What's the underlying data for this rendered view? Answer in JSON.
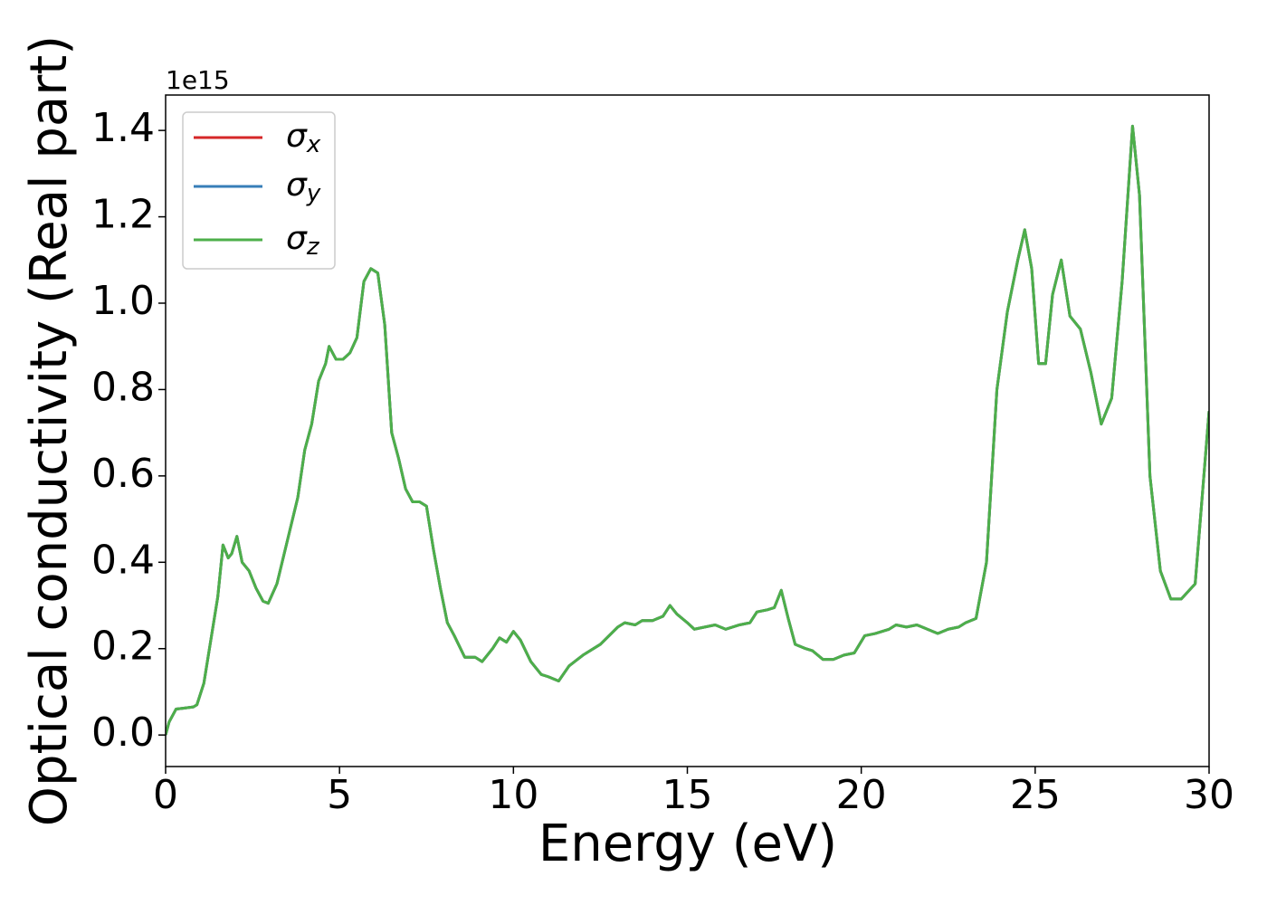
{
  "chart_data": {
    "type": "line",
    "xlabel": "Energy (eV)",
    "ylabel": "Optical conductivity (Real part)",
    "y_offset_label": "1e15",
    "xlim": [
      0,
      30
    ],
    "ylim": [
      -0.073,
      1.482
    ],
    "xticks": [
      0,
      5,
      10,
      15,
      20,
      25,
      30
    ],
    "yticks": [
      {
        "value": 0,
        "label": "0.0"
      },
      0.2,
      0.4,
      0.6,
      0.8,
      {
        "value": 1,
        "label": "1.0"
      },
      1.2,
      1.4
    ],
    "legend": "upper left",
    "x": [
      0,
      0.1,
      0.3,
      0.5,
      0.8,
      0.9,
      1.1,
      1.3,
      1.5,
      1.65,
      1.8,
      1.9,
      2.05,
      2.2,
      2.4,
      2.6,
      2.8,
      2.95,
      3.2,
      3.5,
      3.8,
      4.0,
      4.2,
      4.4,
      4.6,
      4.7,
      4.9,
      5.1,
      5.3,
      5.5,
      5.7,
      5.9,
      6.1,
      6.3,
      6.5,
      6.7,
      6.9,
      7.1,
      7.3,
      7.5,
      7.7,
      7.9,
      8.1,
      8.3,
      8.6,
      8.9,
      9.1,
      9.4,
      9.6,
      9.8,
      10.0,
      10.2,
      10.5,
      10.8,
      11.0,
      11.3,
      11.6,
      12.0,
      12.5,
      13.0,
      13.2,
      13.5,
      13.7,
      14.0,
      14.3,
      14.5,
      14.7,
      15.0,
      15.2,
      15.5,
      15.8,
      16.1,
      16.5,
      16.8,
      17.0,
      17.3,
      17.5,
      17.7,
      17.9,
      18.1,
      18.4,
      18.6,
      18.9,
      19.2,
      19.5,
      19.8,
      20.1,
      20.4,
      20.8,
      21.0,
      21.3,
      21.6,
      21.9,
      22.2,
      22.5,
      22.8,
      23.0,
      23.3,
      23.6,
      23.9,
      24.2,
      24.5,
      24.7,
      24.9,
      25.1,
      25.3,
      25.5,
      25.75,
      26.0,
      26.3,
      26.6,
      26.9,
      27.2,
      27.5,
      27.8,
      28.0,
      28.3,
      28.6,
      28.9,
      29.2,
      29.6,
      30.0
    ],
    "series": [
      {
        "name": "σx",
        "color": "#d62728",
        "values": [
          0.0,
          0.03,
          0.06,
          0.062,
          0.065,
          0.07,
          0.12,
          0.22,
          0.32,
          0.44,
          0.41,
          0.42,
          0.46,
          0.4,
          0.38,
          0.34,
          0.31,
          0.305,
          0.35,
          0.45,
          0.55,
          0.66,
          0.72,
          0.82,
          0.86,
          0.9,
          0.87,
          0.87,
          0.885,
          0.92,
          1.05,
          1.08,
          1.07,
          0.95,
          0.7,
          0.64,
          0.57,
          0.54,
          0.54,
          0.53,
          0.43,
          0.34,
          0.26,
          0.23,
          0.18,
          0.18,
          0.17,
          0.2,
          0.225,
          0.215,
          0.24,
          0.22,
          0.17,
          0.14,
          0.135,
          0.125,
          0.16,
          0.185,
          0.21,
          0.25,
          0.26,
          0.255,
          0.265,
          0.265,
          0.275,
          0.3,
          0.28,
          0.26,
          0.245,
          0.25,
          0.255,
          0.245,
          0.255,
          0.26,
          0.285,
          0.29,
          0.295,
          0.335,
          0.27,
          0.21,
          0.2,
          0.195,
          0.175,
          0.175,
          0.185,
          0.19,
          0.23,
          0.235,
          0.245,
          0.255,
          0.25,
          0.255,
          0.245,
          0.235,
          0.245,
          0.25,
          0.26,
          0.27,
          0.4,
          0.8,
          0.98,
          1.1,
          1.17,
          1.08,
          0.86,
          0.86,
          1.02,
          1.1,
          0.97,
          0.94,
          0.84,
          0.72,
          0.78,
          1.05,
          1.41,
          1.25,
          0.6,
          0.38,
          0.315,
          0.315,
          0.35,
          0.75
        ]
      },
      {
        "name": "σy",
        "color": "#377eb8",
        "values": [
          0.0,
          0.03,
          0.06,
          0.062,
          0.065,
          0.07,
          0.12,
          0.22,
          0.32,
          0.44,
          0.41,
          0.42,
          0.46,
          0.4,
          0.38,
          0.34,
          0.31,
          0.305,
          0.35,
          0.45,
          0.55,
          0.66,
          0.72,
          0.82,
          0.86,
          0.9,
          0.87,
          0.87,
          0.885,
          0.92,
          1.05,
          1.08,
          1.07,
          0.95,
          0.7,
          0.64,
          0.57,
          0.54,
          0.54,
          0.53,
          0.43,
          0.34,
          0.26,
          0.23,
          0.18,
          0.18,
          0.17,
          0.2,
          0.225,
          0.215,
          0.24,
          0.22,
          0.17,
          0.14,
          0.135,
          0.125,
          0.16,
          0.185,
          0.21,
          0.25,
          0.26,
          0.255,
          0.265,
          0.265,
          0.275,
          0.3,
          0.28,
          0.26,
          0.245,
          0.25,
          0.255,
          0.245,
          0.255,
          0.26,
          0.285,
          0.29,
          0.295,
          0.335,
          0.27,
          0.21,
          0.2,
          0.195,
          0.175,
          0.175,
          0.185,
          0.19,
          0.23,
          0.235,
          0.245,
          0.255,
          0.25,
          0.255,
          0.245,
          0.235,
          0.245,
          0.25,
          0.26,
          0.27,
          0.4,
          0.8,
          0.98,
          1.1,
          1.17,
          1.08,
          0.86,
          0.86,
          1.02,
          1.1,
          0.97,
          0.94,
          0.84,
          0.72,
          0.78,
          1.05,
          1.41,
          1.25,
          0.6,
          0.38,
          0.315,
          0.315,
          0.35,
          0.75
        ]
      },
      {
        "name": "σz",
        "color": "#4daf4a",
        "values": [
          0.0,
          0.03,
          0.06,
          0.062,
          0.065,
          0.07,
          0.12,
          0.22,
          0.32,
          0.44,
          0.41,
          0.42,
          0.46,
          0.4,
          0.38,
          0.34,
          0.31,
          0.305,
          0.35,
          0.45,
          0.55,
          0.66,
          0.72,
          0.82,
          0.86,
          0.9,
          0.87,
          0.87,
          0.885,
          0.92,
          1.05,
          1.08,
          1.07,
          0.95,
          0.7,
          0.64,
          0.57,
          0.54,
          0.54,
          0.53,
          0.43,
          0.34,
          0.26,
          0.23,
          0.18,
          0.18,
          0.17,
          0.2,
          0.225,
          0.215,
          0.24,
          0.22,
          0.17,
          0.14,
          0.135,
          0.125,
          0.16,
          0.185,
          0.21,
          0.25,
          0.26,
          0.255,
          0.265,
          0.265,
          0.275,
          0.3,
          0.28,
          0.26,
          0.245,
          0.25,
          0.255,
          0.245,
          0.255,
          0.26,
          0.285,
          0.29,
          0.295,
          0.335,
          0.27,
          0.21,
          0.2,
          0.195,
          0.175,
          0.175,
          0.185,
          0.19,
          0.23,
          0.235,
          0.245,
          0.255,
          0.25,
          0.255,
          0.245,
          0.235,
          0.245,
          0.25,
          0.26,
          0.27,
          0.4,
          0.8,
          0.98,
          1.1,
          1.17,
          1.08,
          0.86,
          0.86,
          1.02,
          1.1,
          0.97,
          0.94,
          0.84,
          0.72,
          0.78,
          1.05,
          1.41,
          1.25,
          0.6,
          0.38,
          0.315,
          0.315,
          0.35,
          0.75
        ]
      }
    ]
  }
}
